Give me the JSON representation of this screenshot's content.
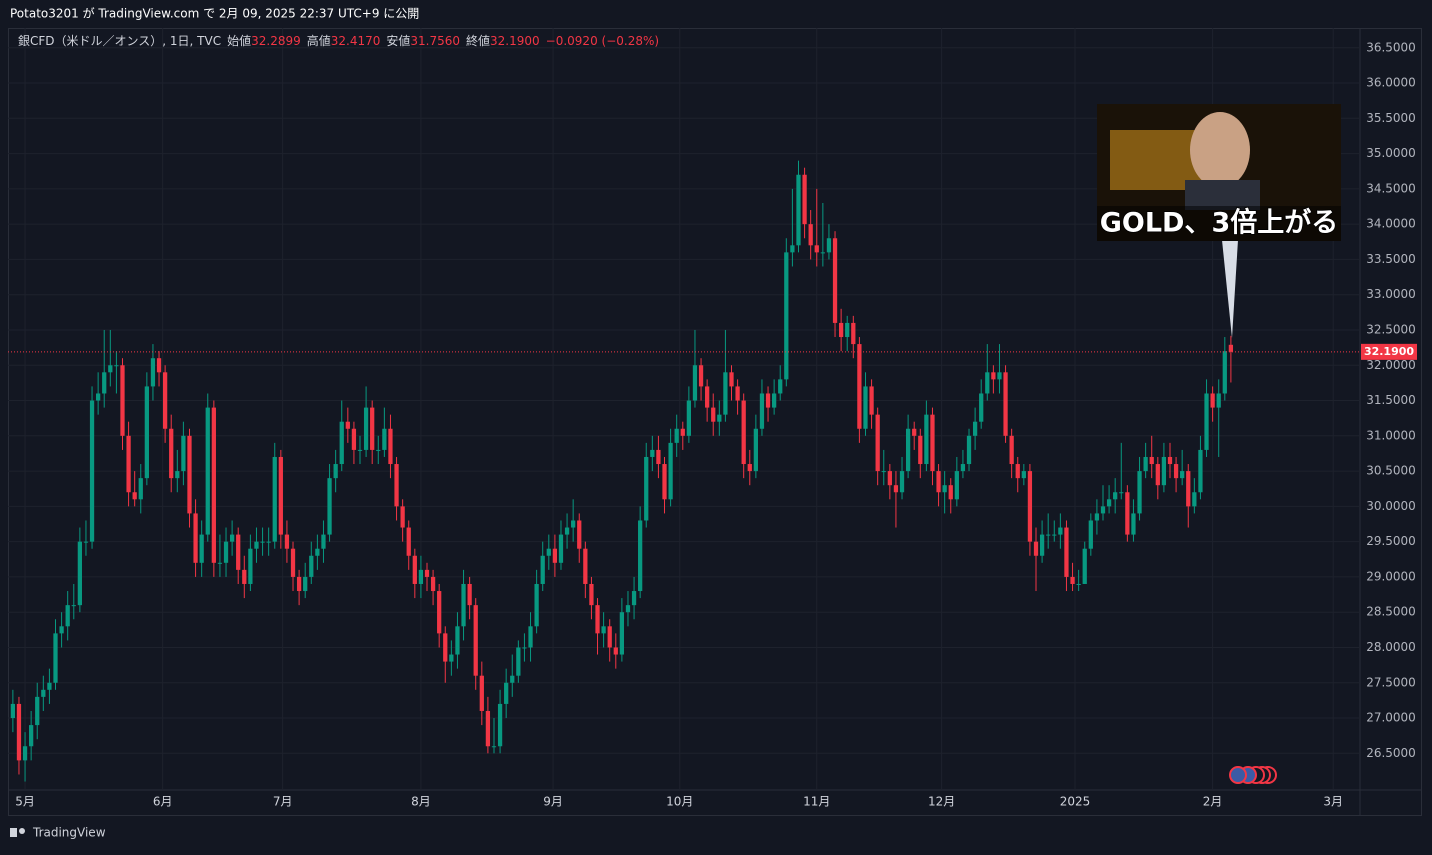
{
  "header": {
    "text": "Potato3201 が TradingView.com で 2月 09, 2025 22:37 UTC+9 に公開"
  },
  "footer": {
    "brand": "TradingView"
  },
  "thumbnail": {
    "caption": "GOLD、3倍上がる"
  },
  "chart_data": {
    "type": "candlestick",
    "legend": {
      "symbol": "銀CFD（米ドル／オンス）, 1日, TVC",
      "items": [
        {
          "label": "始値",
          "text": "32.2899"
        },
        {
          "label": "高値",
          "text": "32.4170"
        },
        {
          "label": "安値",
          "text": "31.7560"
        },
        {
          "label": "終値",
          "text": "32.1900"
        }
      ],
      "change": "−0.0920 (−0.28%)"
    },
    "up_color": "#089981",
    "down_color": "#f23645",
    "grid": true,
    "last_price": {
      "value": 32.19,
      "label": "32.1900"
    },
    "xlim": [
      -0.8,
      221.2
    ],
    "xticks": [
      {
        "value": 2,
        "label": "5月"
      },
      {
        "value": 24.6,
        "label": "6月"
      },
      {
        "value": 44.3,
        "label": "7月"
      },
      {
        "value": 67,
        "label": "8月"
      },
      {
        "value": 88.7,
        "label": "9月"
      },
      {
        "value": 109.5,
        "label": "10月"
      },
      {
        "value": 132,
        "label": "11月"
      },
      {
        "value": 152.5,
        "label": "12月"
      },
      {
        "value": 174.4,
        "label": "2025"
      },
      {
        "value": 197,
        "label": "2月"
      },
      {
        "value": 216.8,
        "label": "3月"
      }
    ],
    "ylim": [
      25.98,
      36.78
    ],
    "yticks": [
      {
        "value": 26.5,
        "label": "26.5000"
      },
      {
        "value": 27,
        "label": "27.0000"
      },
      {
        "value": 27.5,
        "label": "27.5000"
      },
      {
        "value": 28,
        "label": "28.0000"
      },
      {
        "value": 28.5,
        "label": "28.5000"
      },
      {
        "value": 29,
        "label": "29.0000"
      },
      {
        "value": 29.5,
        "label": "29.5000"
      },
      {
        "value": 30,
        "label": "30.0000"
      },
      {
        "value": 30.5,
        "label": "30.5000"
      },
      {
        "value": 31,
        "label": "31.0000"
      },
      {
        "value": 31.5,
        "label": "31.5000"
      },
      {
        "value": 32,
        "label": "32.0000"
      },
      {
        "value": 32.5,
        "label": "32.5000"
      },
      {
        "value": 33,
        "label": "33.0000"
      },
      {
        "value": 33.5,
        "label": "33.5000"
      },
      {
        "value": 34,
        "label": "34.0000"
      },
      {
        "value": 34.5,
        "label": "34.5000"
      },
      {
        "value": 35,
        "label": "35.0000"
      },
      {
        "value": 35.5,
        "label": "35.5000"
      },
      {
        "value": 36,
        "label": "36.0000"
      },
      {
        "value": 36.5,
        "label": "36.5000"
      }
    ],
    "ohlc": [
      [
        27.0,
        27.4,
        26.8,
        27.2
      ],
      [
        27.2,
        27.3,
        26.2,
        26.4
      ],
      [
        26.4,
        26.8,
        26.1,
        26.6
      ],
      [
        26.6,
        27.1,
        26.4,
        26.9
      ],
      [
        26.9,
        27.5,
        26.7,
        27.3
      ],
      [
        27.3,
        27.6,
        27.1,
        27.4
      ],
      [
        27.4,
        27.7,
        27.2,
        27.5
      ],
      [
        27.5,
        28.4,
        27.4,
        28.2
      ],
      [
        28.2,
        28.5,
        28.0,
        28.3
      ],
      [
        28.3,
        28.8,
        28.1,
        28.6
      ],
      [
        28.6,
        28.9,
        28.4,
        28.6
      ],
      [
        28.6,
        29.7,
        28.5,
        29.5
      ],
      [
        29.5,
        29.8,
        29.3,
        29.5
      ],
      [
        29.5,
        31.7,
        29.4,
        31.5
      ],
      [
        31.5,
        31.9,
        31.3,
        31.6
      ],
      [
        31.6,
        32.5,
        31.4,
        31.9
      ],
      [
        31.9,
        32.5,
        31.7,
        32.0
      ],
      [
        32.0,
        32.2,
        31.6,
        32.0
      ],
      [
        32.0,
        32.1,
        30.8,
        31.0
      ],
      [
        31.0,
        31.2,
        30.0,
        30.2
      ],
      [
        30.2,
        30.5,
        30.0,
        30.1
      ],
      [
        30.1,
        30.6,
        29.9,
        30.4
      ],
      [
        30.4,
        31.9,
        30.3,
        31.7
      ],
      [
        31.7,
        32.3,
        31.5,
        32.1
      ],
      [
        32.1,
        32.2,
        31.7,
        31.9
      ],
      [
        31.9,
        32.0,
        30.9,
        31.1
      ],
      [
        31.1,
        31.3,
        30.2,
        30.4
      ],
      [
        30.4,
        30.8,
        30.2,
        30.5
      ],
      [
        30.5,
        31.2,
        30.3,
        31.0
      ],
      [
        31.0,
        31.1,
        29.7,
        29.9
      ],
      [
        29.9,
        30.1,
        29.0,
        29.2
      ],
      [
        29.2,
        29.8,
        29.0,
        29.6
      ],
      [
        29.6,
        31.6,
        29.5,
        31.4
      ],
      [
        31.4,
        31.5,
        29.0,
        29.2
      ],
      [
        29.2,
        29.6,
        29.0,
        29.2
      ],
      [
        29.2,
        29.7,
        29.0,
        29.5
      ],
      [
        29.5,
        29.8,
        29.3,
        29.6
      ],
      [
        29.6,
        29.7,
        28.9,
        29.1
      ],
      [
        29.1,
        29.3,
        28.7,
        28.9
      ],
      [
        28.9,
        29.6,
        28.8,
        29.4
      ],
      [
        29.4,
        29.7,
        29.2,
        29.5
      ],
      [
        29.5,
        29.7,
        29.3,
        29.5
      ],
      [
        29.5,
        29.7,
        29.3,
        29.5
      ],
      [
        29.5,
        30.9,
        29.4,
        30.7
      ],
      [
        30.7,
        30.8,
        29.4,
        29.6
      ],
      [
        29.6,
        29.8,
        29.2,
        29.4
      ],
      [
        29.4,
        29.5,
        28.8,
        29.0
      ],
      [
        29.0,
        29.1,
        28.6,
        28.8
      ],
      [
        28.8,
        29.2,
        28.7,
        29.0
      ],
      [
        29.0,
        29.5,
        28.9,
        29.3
      ],
      [
        29.3,
        29.6,
        29.1,
        29.4
      ],
      [
        29.4,
        29.8,
        29.2,
        29.6
      ],
      [
        29.6,
        30.6,
        29.5,
        30.4
      ],
      [
        30.4,
        30.8,
        30.2,
        30.6
      ],
      [
        30.6,
        31.5,
        30.5,
        31.2
      ],
      [
        31.2,
        31.4,
        30.9,
        31.1
      ],
      [
        31.1,
        31.2,
        30.6,
        30.8
      ],
      [
        30.8,
        31.0,
        30.6,
        30.8
      ],
      [
        30.8,
        31.7,
        30.7,
        31.4
      ],
      [
        31.4,
        31.5,
        30.6,
        30.8
      ],
      [
        30.8,
        31.0,
        30.6,
        30.8
      ],
      [
        30.8,
        31.4,
        30.7,
        31.1
      ],
      [
        31.1,
        31.3,
        30.4,
        30.6
      ],
      [
        30.6,
        30.7,
        29.8,
        30.0
      ],
      [
        30.0,
        30.1,
        29.5,
        29.7
      ],
      [
        29.7,
        29.8,
        29.1,
        29.3
      ],
      [
        29.3,
        29.4,
        28.7,
        28.9
      ],
      [
        28.9,
        29.3,
        28.7,
        29.1
      ],
      [
        29.1,
        29.2,
        28.8,
        29.0
      ],
      [
        29.0,
        29.1,
        28.6,
        28.8
      ],
      [
        28.8,
        28.9,
        28.0,
        28.2
      ],
      [
        28.2,
        28.3,
        27.5,
        27.8
      ],
      [
        27.8,
        28.1,
        27.6,
        27.9
      ],
      [
        27.9,
        28.5,
        27.7,
        28.3
      ],
      [
        28.3,
        29.1,
        28.1,
        28.9
      ],
      [
        28.9,
        29.0,
        28.4,
        28.6
      ],
      [
        28.6,
        28.7,
        27.4,
        27.6
      ],
      [
        27.6,
        27.8,
        26.9,
        27.1
      ],
      [
        27.1,
        27.3,
        26.5,
        26.6
      ],
      [
        26.6,
        27.0,
        26.5,
        26.6
      ],
      [
        26.6,
        27.4,
        26.5,
        27.2
      ],
      [
        27.2,
        27.7,
        27.0,
        27.5
      ],
      [
        27.5,
        27.9,
        27.3,
        27.6
      ],
      [
        27.6,
        28.1,
        27.5,
        28.0
      ],
      [
        28.0,
        28.2,
        27.8,
        28.0
      ],
      [
        28.0,
        28.5,
        27.8,
        28.3
      ],
      [
        28.3,
        29.1,
        28.2,
        28.9
      ],
      [
        28.9,
        29.5,
        28.8,
        29.3
      ],
      [
        29.3,
        29.6,
        29.1,
        29.4
      ],
      [
        29.4,
        29.6,
        29.0,
        29.2
      ],
      [
        29.2,
        29.8,
        29.1,
        29.6
      ],
      [
        29.6,
        29.9,
        29.4,
        29.7
      ],
      [
        29.7,
        30.1,
        29.5,
        29.8
      ],
      [
        29.8,
        29.9,
        29.2,
        29.4
      ],
      [
        29.4,
        29.5,
        28.7,
        28.9
      ],
      [
        28.9,
        29.0,
        28.4,
        28.6
      ],
      [
        28.6,
        28.7,
        27.9,
        28.2
      ],
      [
        28.2,
        28.5,
        28.0,
        28.3
      ],
      [
        28.3,
        28.4,
        27.8,
        28.0
      ],
      [
        28.0,
        28.2,
        27.7,
        27.9
      ],
      [
        27.9,
        28.7,
        27.8,
        28.5
      ],
      [
        28.5,
        28.8,
        28.3,
        28.6
      ],
      [
        28.6,
        29.0,
        28.4,
        28.8
      ],
      [
        28.8,
        30.0,
        28.7,
        29.8
      ],
      [
        29.8,
        30.9,
        29.7,
        30.7
      ],
      [
        30.7,
        31.0,
        30.5,
        30.8
      ],
      [
        30.8,
        31.0,
        30.4,
        30.6
      ],
      [
        30.6,
        30.7,
        29.9,
        30.1
      ],
      [
        30.1,
        31.1,
        30.0,
        30.9
      ],
      [
        30.9,
        31.3,
        30.7,
        31.1
      ],
      [
        31.1,
        31.2,
        30.8,
        31.0
      ],
      [
        31.0,
        31.7,
        30.9,
        31.5
      ],
      [
        31.5,
        32.5,
        31.4,
        32.0
      ],
      [
        32.0,
        32.1,
        31.5,
        31.7
      ],
      [
        31.7,
        31.8,
        31.2,
        31.4
      ],
      [
        31.4,
        31.6,
        31.0,
        31.2
      ],
      [
        31.2,
        31.5,
        31.0,
        31.3
      ],
      [
        31.3,
        32.5,
        31.2,
        31.9
      ],
      [
        31.9,
        32.0,
        31.5,
        31.7
      ],
      [
        31.7,
        31.8,
        31.3,
        31.5
      ],
      [
        31.5,
        31.6,
        30.4,
        30.6
      ],
      [
        30.6,
        30.8,
        30.3,
        30.5
      ],
      [
        30.5,
        31.3,
        30.4,
        31.1
      ],
      [
        31.1,
        31.8,
        31.0,
        31.6
      ],
      [
        31.6,
        31.7,
        31.2,
        31.4
      ],
      [
        31.4,
        31.8,
        31.3,
        31.6
      ],
      [
        31.6,
        32.0,
        31.5,
        31.8
      ],
      [
        31.8,
        33.8,
        31.7,
        33.6
      ],
      [
        33.6,
        34.5,
        33.4,
        33.7
      ],
      [
        33.7,
        34.9,
        33.6,
        34.7
      ],
      [
        34.7,
        34.8,
        33.8,
        34.0
      ],
      [
        34.0,
        34.2,
        33.5,
        33.7
      ],
      [
        33.7,
        34.5,
        33.4,
        33.6
      ],
      [
        33.6,
        34.3,
        33.4,
        33.6
      ],
      [
        33.6,
        34.0,
        33.5,
        33.8
      ],
      [
        33.8,
        33.9,
        32.4,
        32.6
      ],
      [
        32.6,
        32.8,
        32.2,
        32.4
      ],
      [
        32.4,
        32.7,
        32.2,
        32.6
      ],
      [
        32.6,
        32.7,
        32.1,
        32.3
      ],
      [
        32.3,
        32.4,
        30.9,
        31.1
      ],
      [
        31.1,
        31.9,
        31.0,
        31.7
      ],
      [
        31.7,
        31.8,
        31.1,
        31.3
      ],
      [
        31.3,
        31.4,
        30.3,
        30.5
      ],
      [
        30.5,
        30.8,
        30.3,
        30.5
      ],
      [
        30.5,
        30.6,
        30.1,
        30.3
      ],
      [
        30.3,
        30.5,
        29.7,
        30.2
      ],
      [
        30.2,
        30.7,
        30.1,
        30.5
      ],
      [
        30.5,
        31.3,
        30.4,
        31.1
      ],
      [
        31.1,
        31.2,
        30.8,
        31.0
      ],
      [
        31.0,
        31.1,
        30.4,
        30.6
      ],
      [
        30.6,
        31.5,
        30.5,
        31.3
      ],
      [
        31.3,
        31.4,
        30.3,
        30.5
      ],
      [
        30.5,
        30.6,
        30.0,
        30.2
      ],
      [
        30.2,
        30.5,
        29.9,
        30.3
      ],
      [
        30.3,
        30.4,
        29.9,
        30.1
      ],
      [
        30.1,
        30.7,
        30.0,
        30.5
      ],
      [
        30.5,
        30.8,
        30.4,
        30.6
      ],
      [
        30.6,
        31.1,
        30.5,
        31.0
      ],
      [
        31.0,
        31.4,
        30.8,
        31.2
      ],
      [
        31.2,
        31.8,
        31.1,
        31.6
      ],
      [
        31.6,
        32.3,
        31.5,
        31.9
      ],
      [
        31.9,
        32.0,
        31.6,
        31.8
      ],
      [
        31.8,
        32.3,
        31.6,
        31.9
      ],
      [
        31.9,
        32.0,
        30.9,
        31.0
      ],
      [
        31.0,
        31.1,
        30.4,
        30.6
      ],
      [
        30.6,
        30.7,
        30.2,
        30.4
      ],
      [
        30.4,
        30.6,
        30.3,
        30.5
      ],
      [
        30.5,
        30.6,
        29.3,
        29.5
      ],
      [
        29.5,
        29.7,
        28.8,
        29.3
      ],
      [
        29.3,
        29.8,
        29.2,
        29.6
      ],
      [
        29.6,
        29.9,
        29.4,
        29.6
      ],
      [
        29.6,
        29.8,
        29.5,
        29.6
      ],
      [
        29.6,
        29.9,
        29.4,
        29.7
      ],
      [
        29.7,
        29.8,
        28.8,
        29.0
      ],
      [
        29.0,
        29.2,
        28.8,
        28.9
      ],
      [
        28.9,
        29.1,
        28.8,
        28.9
      ],
      [
        28.9,
        29.5,
        28.9,
        29.4
      ],
      [
        29.4,
        29.9,
        29.3,
        29.8
      ],
      [
        29.8,
        30.1,
        29.6,
        29.9
      ],
      [
        29.9,
        30.3,
        29.8,
        30.0
      ],
      [
        30.0,
        30.3,
        29.9,
        30.1
      ],
      [
        30.1,
        30.4,
        29.9,
        30.2
      ],
      [
        30.2,
        30.9,
        30.1,
        30.2
      ],
      [
        30.2,
        30.3,
        29.5,
        29.6
      ],
      [
        29.6,
        30.1,
        29.5,
        29.9
      ],
      [
        29.9,
        30.7,
        29.8,
        30.5
      ],
      [
        30.5,
        30.9,
        30.4,
        30.7
      ],
      [
        30.7,
        31.0,
        30.4,
        30.6
      ],
      [
        30.6,
        30.7,
        30.1,
        30.3
      ],
      [
        30.3,
        30.9,
        30.2,
        30.7
      ],
      [
        30.7,
        30.9,
        30.4,
        30.6
      ],
      [
        30.6,
        30.7,
        30.2,
        30.4
      ],
      [
        30.4,
        30.8,
        30.3,
        30.5
      ],
      [
        30.5,
        30.6,
        29.7,
        30.0
      ],
      [
        30.0,
        30.4,
        29.9,
        30.2
      ],
      [
        30.2,
        31.0,
        30.1,
        30.8
      ],
      [
        30.8,
        31.8,
        30.7,
        31.6
      ],
      [
        31.6,
        31.7,
        31.2,
        31.4
      ],
      [
        31.4,
        31.8,
        30.7,
        31.6
      ],
      [
        31.6,
        32.4,
        31.5,
        32.2
      ],
      [
        32.2899,
        32.417,
        31.756,
        32.19
      ]
    ]
  }
}
